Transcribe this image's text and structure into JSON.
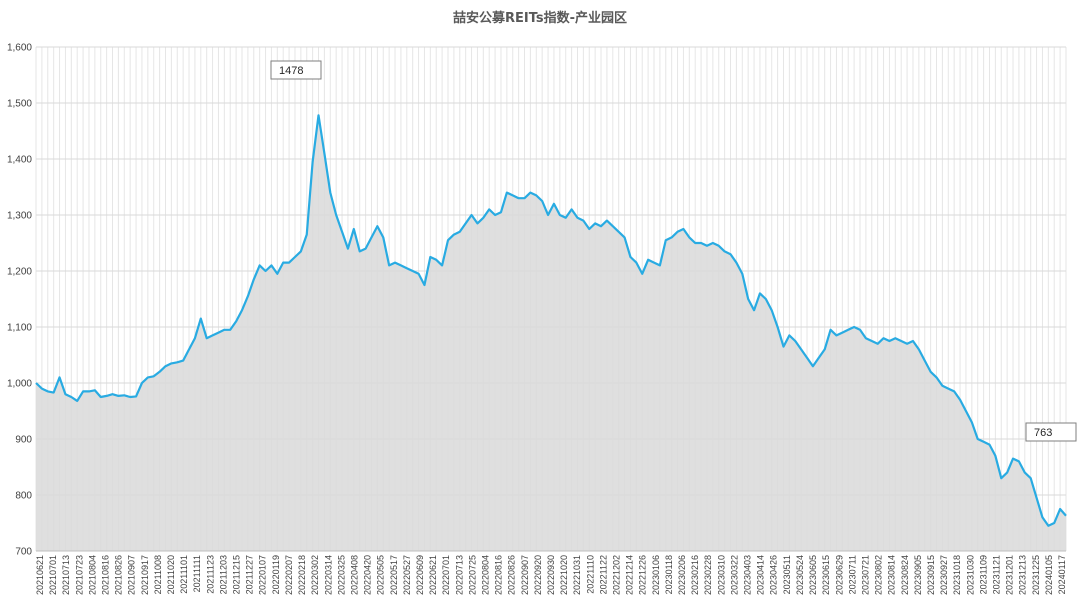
{
  "chart_data": {
    "type": "area",
    "title": "喆安公募REITs指数-产业园区",
    "ylim": [
      700,
      1600
    ],
    "yticks": [
      700,
      800,
      900,
      1000,
      1100,
      1200,
      1300,
      1400,
      1500,
      1600
    ],
    "ytick_labels": [
      "700",
      "800",
      "900",
      "1,000",
      "1,100",
      "1,200",
      "1,300",
      "1,400",
      "1,500",
      "1,600"
    ],
    "grid": true,
    "legend": "none",
    "line_color": "#29ABE2",
    "fill_color": "#D9D9D9",
    "xticks": [
      "20210621",
      "20210701",
      "20210713",
      "20210723",
      "20210804",
      "20210816",
      "20210826",
      "20210907",
      "20210917",
      "20211008",
      "20211020",
      "20211101",
      "20211111",
      "20211123",
      "20211203",
      "20211215",
      "20211227",
      "20220107",
      "20220119",
      "20220207",
      "20220218",
      "20220302",
      "20220314",
      "20220325",
      "20220408",
      "20220420",
      "20220505",
      "20220517",
      "20220527",
      "20220609",
      "20220621",
      "20220701",
      "20220713",
      "20220725",
      "20220804",
      "20220816",
      "20220826",
      "20220907",
      "20220920",
      "20220930",
      "20221020",
      "20221031",
      "20221110",
      "20221122",
      "20221202",
      "20221214",
      "20221226",
      "20230106",
      "20230118",
      "20230206",
      "20230216",
      "20230228",
      "20230310",
      "20230322",
      "20230403",
      "20230414",
      "20230426",
      "20230511",
      "20230524",
      "20230605",
      "20230615",
      "20230629",
      "20230711",
      "20230721",
      "20230802",
      "20230814",
      "20230824",
      "20230905",
      "20230915",
      "20230927",
      "20231018",
      "20231030",
      "20231109",
      "20231121",
      "20231201",
      "20231213",
      "20231225",
      "20240105",
      "20240117"
    ],
    "values": [
      1000,
      990,
      985,
      983,
      1010,
      980,
      975,
      968,
      985,
      985,
      987,
      975,
      977,
      980,
      977,
      978,
      975,
      976,
      1000,
      1010,
      1012,
      1020,
      1030,
      1035,
      1037,
      1040,
      1060,
      1080,
      1115,
      1080,
      1085,
      1090,
      1095,
      1095,
      1110,
      1130,
      1155,
      1185,
      1210,
      1200,
      1210,
      1195,
      1215,
      1215,
      1225,
      1235,
      1265,
      1395,
      1478,
      1410,
      1340,
      1300,
      1270,
      1240,
      1275,
      1235,
      1240,
      1260,
      1280,
      1260,
      1210,
      1215,
      1210,
      1205,
      1200,
      1195,
      1175,
      1225,
      1220,
      1210,
      1255,
      1265,
      1270,
      1285,
      1300,
      1285,
      1295,
      1310,
      1300,
      1305,
      1340,
      1335,
      1330,
      1330,
      1340,
      1335,
      1325,
      1300,
      1320,
      1300,
      1295,
      1310,
      1295,
      1290,
      1275,
      1285,
      1280,
      1290,
      1280,
      1270,
      1260,
      1225,
      1215,
      1195,
      1220,
      1215,
      1210,
      1255,
      1260,
      1270,
      1275,
      1260,
      1250,
      1250,
      1245,
      1250,
      1245,
      1235,
      1230,
      1215,
      1195,
      1150,
      1130,
      1160,
      1150,
      1130,
      1100,
      1065,
      1085,
      1075,
      1060,
      1045,
      1030,
      1045,
      1060,
      1095,
      1085,
      1090,
      1095,
      1100,
      1095,
      1080,
      1075,
      1070,
      1080,
      1075,
      1080,
      1075,
      1070,
      1075,
      1060,
      1040,
      1020,
      1010,
      995,
      990,
      985,
      970,
      950,
      930,
      900,
      895,
      890,
      870,
      830,
      840,
      865,
      860,
      840,
      830,
      795,
      760,
      745,
      750,
      775,
      763
    ],
    "annotations": [
      {
        "text": "1478",
        "x_index": 48,
        "value": 1478
      },
      {
        "text": "763",
        "x_index": 176,
        "value": 763
      }
    ]
  }
}
